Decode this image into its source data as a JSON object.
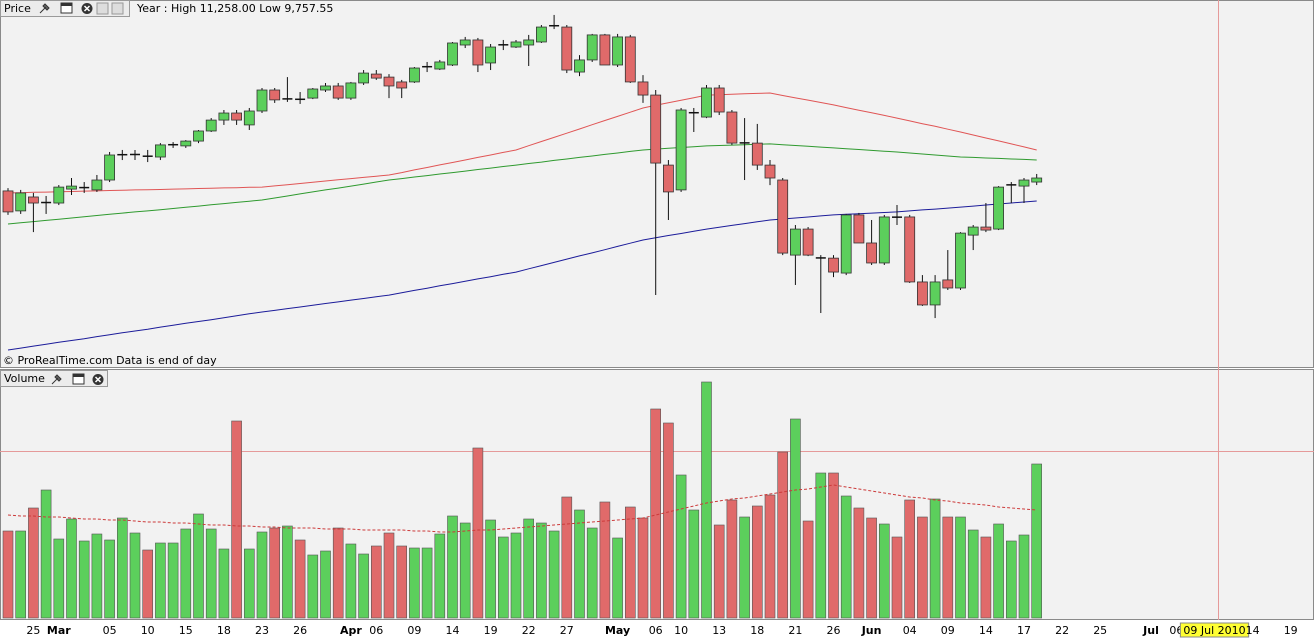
{
  "chart_data": [
    {
      "type": "candlestick",
      "title": "Price",
      "subtitle": "Year : High 11,258.00 Low 9,757.55",
      "annotation": "© ProRealTime.com Data is end of day",
      "up_color": "#5ccf5c",
      "down_color": "#e06a6a",
      "ylim": [
        9573,
        11332
      ],
      "open": [
        10386,
        10287,
        10356,
        10326,
        10326,
        10395,
        10400,
        10391,
        10440,
        10564,
        10564,
        10559,
        10554,
        10614,
        10609,
        10633,
        10683,
        10737,
        10772,
        10713,
        10782,
        10886,
        10841,
        10841,
        10846,
        10886,
        10906,
        10846,
        10921,
        10965,
        10950,
        10926,
        10926,
        11000,
        10990,
        11010,
        11109,
        11134,
        11020,
        11109,
        11099,
        11109,
        11124,
        11203,
        11198,
        10975,
        11035,
        11159,
        11010,
        11149,
        10926,
        10861,
        10514,
        10391,
        10772,
        10752,
        10896,
        10777,
        10623,
        10623,
        10514,
        10440,
        10068,
        10197,
        10053,
        10053,
        9979,
        10267,
        10128,
        10029,
        10257,
        10257,
        9935,
        9821,
        9945,
        9905,
        10167,
        10207,
        10197,
        10415,
        10410,
        10430
      ],
      "high": [
        10400,
        10391,
        10376,
        10361,
        10415,
        10450,
        10430,
        10465,
        10579,
        10589,
        10589,
        10589,
        10623,
        10628,
        10638,
        10688,
        10747,
        10787,
        10787,
        10797,
        10896,
        10896,
        10950,
        10876,
        10896,
        10921,
        10921,
        10926,
        10985,
        10985,
        10965,
        10936,
        11000,
        11025,
        11035,
        11124,
        11149,
        11144,
        11114,
        11134,
        11134,
        11159,
        11208,
        11258,
        11208,
        11059,
        11164,
        11164,
        11164,
        11159,
        10960,
        10886,
        10539,
        10797,
        10797,
        10911,
        10911,
        10787,
        10747,
        10718,
        10539,
        10450,
        10217,
        10207,
        10068,
        10068,
        10272,
        10277,
        10242,
        10267,
        10316,
        10267,
        9969,
        9969,
        10093,
        10182,
        10217,
        10326,
        10410,
        10430,
        10450,
        10470
      ],
      "low": [
        10267,
        10272,
        10182,
        10272,
        10316,
        10366,
        10376,
        10381,
        10430,
        10539,
        10539,
        10529,
        10539,
        10599,
        10599,
        10623,
        10678,
        10713,
        10713,
        10688,
        10772,
        10822,
        10827,
        10817,
        10841,
        10876,
        10837,
        10837,
        10911,
        10936,
        10846,
        10846,
        10921,
        10975,
        10985,
        11005,
        11094,
        10975,
        10985,
        11084,
        11094,
        11005,
        11119,
        11188,
        10970,
        10955,
        11025,
        11010,
        11000,
        10921,
        10822,
        9870,
        10242,
        10381,
        10678,
        10747,
        10762,
        10614,
        10440,
        10490,
        10415,
        10068,
        9920,
        10063,
        9781,
        9959,
        9969,
        10128,
        10019,
        10019,
        10217,
        9930,
        9816,
        9756,
        9895,
        9895,
        10093,
        10182,
        10192,
        10326,
        10326,
        10415
      ],
      "close": [
        10282,
        10376,
        10326,
        10331,
        10405,
        10410,
        10405,
        10440,
        10564,
        10567,
        10569,
        10557,
        10614,
        10616,
        10633,
        10683,
        10737,
        10772,
        10737,
        10782,
        10886,
        10837,
        10843,
        10839,
        10891,
        10906,
        10846,
        10921,
        10970,
        10945,
        10906,
        10896,
        10995,
        11003,
        11025,
        11119,
        11134,
        11010,
        11099,
        11111,
        11124,
        11134,
        11198,
        11206,
        10985,
        11035,
        11159,
        11010,
        11149,
        10926,
        10861,
        10524,
        10381,
        10787,
        10775,
        10896,
        10777,
        10623,
        10625,
        10514,
        10450,
        10078,
        10197,
        10068,
        10055,
        9984,
        10267,
        10128,
        10029,
        10257,
        10255,
        9935,
        9821,
        9935,
        9905,
        10177,
        10207,
        10192,
        10405,
        10417,
        10440,
        10450
      ],
      "overlays": [
        {
          "color": "#e05555",
          "values": [
            10376,
            10377,
            10379,
            10380,
            10382,
            10383,
            10385,
            10386,
            10388,
            10389,
            10391,
            10392,
            10393,
            10395,
            10396,
            10398,
            10399,
            10401,
            10402,
            10404,
            10405,
            10411,
            10417,
            10423,
            10429,
            10435,
            10441,
            10447,
            10453,
            10459,
            10465,
            10477,
            10490,
            10502,
            10515,
            10527,
            10539,
            10552,
            10564,
            10577,
            10589,
            10610,
            10631,
            10651,
            10672,
            10693,
            10714,
            10735,
            10755,
            10776,
            10797,
            10810,
            10823,
            10835,
            10848,
            10861,
            10863,
            10865,
            10867,
            10869,
            10871,
            10859,
            10847,
            10836,
            10824,
            10812,
            10799,
            10786,
            10773,
            10760,
            10747,
            10733,
            10719,
            10706,
            10692,
            10678,
            10663,
            10648,
            10634,
            10619,
            10604,
            10589
          ]
        },
        {
          "color": "#2f9a2f",
          "values": [
            10222,
            10228,
            10234,
            10240,
            10246,
            10252,
            10258,
            10264,
            10270,
            10276,
            10282,
            10287,
            10293,
            10299,
            10305,
            10311,
            10317,
            10323,
            10329,
            10335,
            10341,
            10351,
            10361,
            10371,
            10381,
            10391,
            10400,
            10410,
            10420,
            10430,
            10440,
            10447,
            10455,
            10462,
            10470,
            10477,
            10484,
            10492,
            10499,
            10507,
            10514,
            10522,
            10529,
            10537,
            10544,
            10552,
            10559,
            10567,
            10574,
            10582,
            10589,
            10593,
            10597,
            10601,
            10605,
            10609,
            10611,
            10613,
            10615,
            10617,
            10619,
            10615,
            10611,
            10607,
            10603,
            10599,
            10595,
            10591,
            10587,
            10583,
            10579,
            10574,
            10569,
            10564,
            10559,
            10554,
            10552,
            10549,
            10547,
            10544,
            10542,
            10539
          ]
        },
        {
          "color": "#1c1c9a",
          "values": [
            9598,
            9607,
            9617,
            9626,
            9636,
            9645,
            9654,
            9664,
            9673,
            9683,
            9692,
            9701,
            9711,
            9720,
            9730,
            9739,
            9748,
            9758,
            9767,
            9777,
            9786,
            9794,
            9803,
            9811,
            9820,
            9828,
            9836,
            9845,
            9853,
            9862,
            9870,
            9881,
            9893,
            9904,
            9916,
            9927,
            9938,
            9950,
            9961,
            9973,
            9984,
            10000,
            10016,
            10032,
            10048,
            10064,
            10079,
            10095,
            10111,
            10127,
            10143,
            10154,
            10165,
            10175,
            10186,
            10197,
            10206,
            10215,
            10224,
            10233,
            10242,
            10247,
            10252,
            10257,
            10262,
            10267,
            10270,
            10273,
            10276,
            10279,
            10282,
            10287,
            10292,
            10296,
            10301,
            10306,
            10311,
            10316,
            10321,
            10326,
            10331,
            10336
          ]
        }
      ]
    },
    {
      "type": "bar",
      "title": "Volume",
      "ylim": [
        0,
        240
      ],
      "categories": [
        null,
        null,
        "25",
        null,
        "Mar",
        null,
        null,
        null,
        "05",
        null,
        null,
        "10",
        null,
        null,
        "15",
        null,
        null,
        "18",
        null,
        null,
        "23",
        null,
        null,
        "26",
        null,
        null,
        null,
        "Apr",
        null,
        "06",
        null,
        null,
        "09",
        null,
        null,
        "14",
        null,
        null,
        "19",
        null,
        null,
        "22",
        null,
        null,
        "27",
        null,
        null,
        null,
        "May",
        null,
        null,
        "06",
        null,
        "10",
        null,
        null,
        "13",
        null,
        null,
        "18",
        null,
        null,
        "21",
        null,
        null,
        "26",
        null,
        null,
        "Jun",
        null,
        null,
        "04",
        null,
        null,
        "09",
        null,
        null,
        "14",
        null,
        null,
        "17",
        null,
        null,
        "22",
        null,
        null,
        "25",
        null,
        null,
        null,
        "Jul",
        null,
        "06",
        null,
        null,
        "09 Jul 2010",
        null,
        null,
        "14",
        null,
        null,
        "19",
        null
      ],
      "values": [
        87,
        87,
        110,
        128,
        79,
        99,
        77,
        84,
        78,
        100,
        85,
        68,
        75,
        75,
        89,
        104,
        89,
        69,
        197,
        69,
        86,
        90,
        92,
        78,
        63,
        67,
        90,
        74,
        64,
        72,
        85,
        72,
        70,
        70,
        84,
        102,
        95,
        170,
        98,
        81,
        85,
        99,
        95,
        87,
        121,
        108,
        90,
        116,
        80,
        111,
        100,
        209,
        195,
        143,
        108,
        236,
        93,
        118,
        101,
        112,
        123,
        166,
        199,
        97,
        145,
        145,
        122,
        110,
        100,
        94,
        81,
        118,
        101,
        119,
        101,
        101,
        88,
        81,
        94,
        77,
        83,
        154,
        null,
        null,
        null,
        null,
        null,
        null,
        null,
        null,
        null,
        null,
        null,
        null,
        null,
        null,
        null,
        null,
        null,
        null,
        null,
        null,
        null
      ],
      "overlays": [
        {
          "color": "#cc3a3a",
          "dashed": true,
          "values": [
            103,
            102,
            102,
            101,
            101,
            100,
            99,
            99,
            98,
            98,
            97,
            96,
            96,
            95,
            95,
            94,
            93,
            93,
            92,
            92,
            91,
            91,
            90,
            90,
            90,
            89,
            89,
            89,
            88,
            88,
            88,
            88,
            87,
            87,
            86,
            86,
            87,
            88,
            88,
            89,
            90,
            91,
            92,
            93,
            94,
            95,
            96,
            97,
            98,
            99,
            100,
            103,
            106,
            109,
            112,
            115,
            117,
            119,
            120,
            122,
            124,
            126,
            128,
            129,
            131,
            133,
            131,
            129,
            127,
            125,
            123,
            121,
            120,
            118,
            117,
            115,
            114,
            113,
            111,
            110,
            109,
            108,
            null,
            null,
            null,
            null,
            null,
            null,
            null,
            null,
            null,
            null,
            null,
            null,
            null,
            null,
            null,
            null,
            null,
            null,
            null,
            null,
            null
          ]
        }
      ]
    }
  ]
}
